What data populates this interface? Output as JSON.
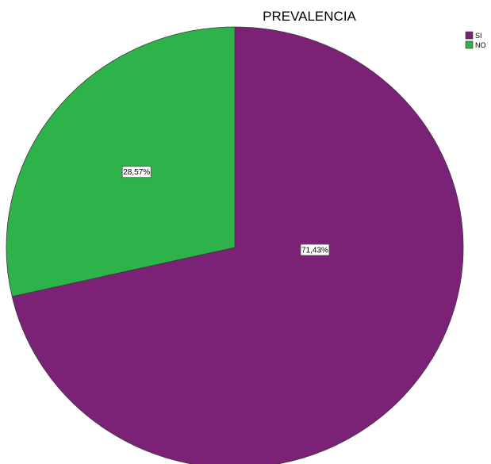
{
  "chart_data": {
    "type": "pie",
    "title": "PREVALENCIA",
    "slices": [
      {
        "name": "SI",
        "value": 71.43,
        "label": "71,43%",
        "color": "#7b2277"
      },
      {
        "name": "NO",
        "value": 28.57,
        "label": "28,57%",
        "color": "#2db34a"
      }
    ],
    "legend": {
      "position": "top-right",
      "entries": [
        "SI",
        "NO"
      ]
    }
  }
}
